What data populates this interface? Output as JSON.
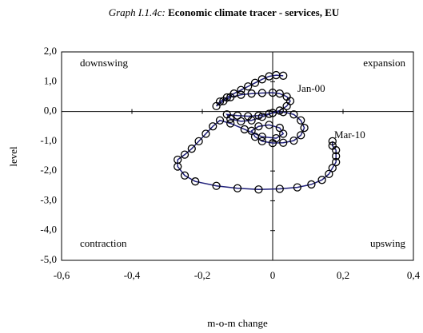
{
  "chart_data": {
    "type": "line",
    "title_prefix": "Graph I.1.4c:",
    "title": "Economic climate tracer - services, EU",
    "xlabel": "m-o-m change",
    "ylabel": "level",
    "xlim": [
      -0.6,
      0.4
    ],
    "ylim": [
      -5,
      2
    ],
    "xticks": [
      {
        "value": -0.6,
        "label": "-0,6"
      },
      {
        "value": -0.4,
        "label": "-0,4"
      },
      {
        "value": -0.2,
        "label": "-0,2"
      },
      0,
      {
        "value": 0.2,
        "label": "0,2"
      },
      {
        "value": 0.4,
        "label": "0,4"
      }
    ],
    "yticks": [
      {
        "value": 2,
        "label": "2,0"
      },
      {
        "value": 1,
        "label": "1,0"
      },
      {
        "value": 0,
        "label": "0,0"
      },
      {
        "value": -1,
        "label": "-1,0"
      },
      {
        "value": -2,
        "label": "-2,0"
      },
      {
        "value": -3,
        "label": "-3,0"
      },
      {
        "value": -4,
        "label": "-4,0"
      },
      {
        "value": -5,
        "label": "-5,0"
      }
    ],
    "quadrants": [
      "downswing",
      "expansion",
      "contraction",
      "upswing"
    ],
    "start_label": "Jan-00",
    "end_label": "Mar-10",
    "color": "#1f1f7a",
    "x": [
      0.03,
      0.01,
      -0.01,
      -0.03,
      -0.05,
      -0.07,
      -0.09,
      -0.11,
      -0.13,
      -0.15,
      -0.16,
      -0.14,
      -0.12,
      -0.09,
      -0.06,
      -0.03,
      0,
      0.02,
      0.04,
      0.05,
      0.04,
      0.02,
      -0.01,
      -0.04,
      -0.07,
      -0.1,
      -0.13,
      -0.12,
      -0.09,
      -0.06,
      -0.03,
      0,
      0.03,
      0.06,
      0.08,
      0.09,
      0.08,
      0.06,
      0.03,
      0,
      -0.03,
      -0.05,
      -0.06,
      -0.04,
      -0.01,
      0.02,
      0.03,
      0.01,
      -0.03,
      -0.08,
      -0.12,
      -0.15,
      -0.17,
      -0.19,
      -0.21,
      -0.23,
      -0.25,
      -0.27,
      -0.27,
      -0.25,
      -0.22,
      -0.16,
      -0.1,
      -0.04,
      0.02,
      0.07,
      0.11,
      0.14,
      0.16,
      0.17,
      0.18,
      0.18,
      0.18,
      0.17,
      0.17
    ],
    "y": [
      1.2,
      1.22,
      1.18,
      1.08,
      0.96,
      0.84,
      0.72,
      0.6,
      0.47,
      0.33,
      0.18,
      0.35,
      0.48,
      0.56,
      0.6,
      0.62,
      0.63,
      0.6,
      0.5,
      0.35,
      0.18,
      0.03,
      -0.08,
      -0.14,
      -0.16,
      -0.14,
      -0.1,
      -0.25,
      -0.33,
      -0.3,
      -0.18,
      -0.05,
      -0.02,
      -0.1,
      -0.3,
      -0.55,
      -0.8,
      -0.98,
      -1.05,
      -1.06,
      -1.0,
      -0.85,
      -0.65,
      -0.5,
      -0.45,
      -0.55,
      -0.75,
      -0.9,
      -0.85,
      -0.6,
      -0.4,
      -0.3,
      -0.5,
      -0.75,
      -1.0,
      -1.25,
      -1.45,
      -1.62,
      -1.85,
      -2.15,
      -2.35,
      -2.5,
      -2.58,
      -2.62,
      -2.6,
      -2.55,
      -2.45,
      -2.3,
      -2.1,
      -1.9,
      -1.7,
      -1.5,
      -1.3,
      -1.15,
      -1.0
    ]
  }
}
